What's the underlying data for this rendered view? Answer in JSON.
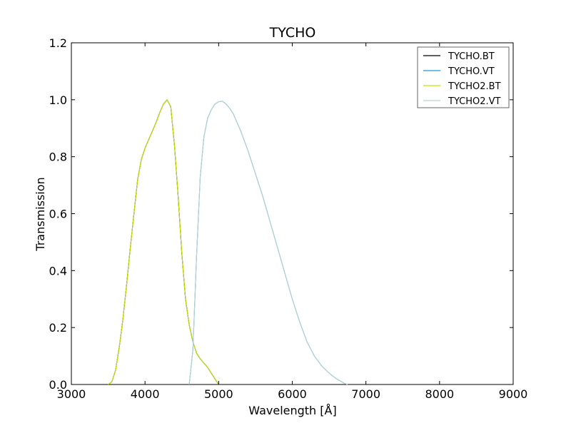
{
  "chart_data": {
    "type": "line",
    "title": "TYCHO",
    "xlabel": "Wavelength [Å]",
    "ylabel": "Transmission",
    "xlim": [
      3000,
      9000
    ],
    "ylim": [
      0,
      1.2
    ],
    "x_ticks": [
      3000,
      4000,
      5000,
      6000,
      7000,
      8000,
      9000
    ],
    "x_tick_labels": [
      "3000",
      "4000",
      "5000",
      "6000",
      "7000",
      "8000",
      "9000"
    ],
    "y_ticks": [
      0.0,
      0.2,
      0.4,
      0.6,
      0.8,
      1.0,
      1.2
    ],
    "y_tick_labels": [
      "0.0",
      "0.2",
      "0.4",
      "0.6",
      "0.8",
      "1.0",
      "1.2"
    ],
    "grid": false,
    "legend_position": "top-right",
    "series": [
      {
        "name": "TYCHO.BT",
        "color": "#000000",
        "x": [
          3500,
          3550,
          3600,
          3650,
          3700,
          3750,
          3800,
          3850,
          3900,
          3950,
          4000,
          4050,
          4100,
          4150,
          4200,
          4250,
          4300,
          4350,
          4400,
          4450,
          4500,
          4550,
          4600,
          4650,
          4700,
          4750,
          4800,
          4850,
          4900,
          4950,
          5000
        ],
        "y": [
          0.0,
          0.01,
          0.05,
          0.13,
          0.23,
          0.35,
          0.48,
          0.6,
          0.72,
          0.79,
          0.83,
          0.86,
          0.89,
          0.92,
          0.955,
          0.985,
          1.0,
          0.975,
          0.84,
          0.66,
          0.46,
          0.3,
          0.21,
          0.15,
          0.11,
          0.09,
          0.075,
          0.06,
          0.04,
          0.02,
          0.0
        ]
      },
      {
        "name": "TYCHO.VT",
        "color": "#1f9bd1",
        "x": [
          4600,
          4650,
          4700,
          4750,
          4800,
          4850,
          4900,
          4950,
          5000,
          5050,
          5100,
          5150,
          5200,
          5300,
          5400,
          5500,
          5600,
          5700,
          5800,
          5900,
          6000,
          6100,
          6200,
          6300,
          6400,
          6500,
          6600,
          6700,
          6750
        ],
        "y": [
          0.0,
          0.12,
          0.45,
          0.73,
          0.87,
          0.935,
          0.965,
          0.985,
          0.993,
          0.995,
          0.985,
          0.97,
          0.95,
          0.89,
          0.82,
          0.74,
          0.66,
          0.57,
          0.48,
          0.39,
          0.3,
          0.22,
          0.15,
          0.1,
          0.065,
          0.04,
          0.02,
          0.005,
          0.0
        ]
      },
      {
        "name": "TYCHO2.BT",
        "color": "#c7e400",
        "x": [
          3500,
          3550,
          3600,
          3650,
          3700,
          3750,
          3800,
          3850,
          3900,
          3950,
          4000,
          4050,
          4100,
          4150,
          4200,
          4250,
          4300,
          4350,
          4400,
          4450,
          4500,
          4550,
          4600,
          4650,
          4700,
          4750,
          4800,
          4850,
          4900,
          4950,
          5000
        ],
        "y": [
          0.0,
          0.01,
          0.05,
          0.13,
          0.23,
          0.35,
          0.48,
          0.6,
          0.72,
          0.79,
          0.83,
          0.86,
          0.89,
          0.92,
          0.955,
          0.985,
          1.0,
          0.975,
          0.84,
          0.66,
          0.46,
          0.3,
          0.21,
          0.15,
          0.11,
          0.09,
          0.075,
          0.06,
          0.04,
          0.02,
          0.0
        ]
      },
      {
        "name": "TYCHO2.VT",
        "color": "#b9d2d2",
        "x": [
          4600,
          4650,
          4700,
          4750,
          4800,
          4850,
          4900,
          4950,
          5000,
          5050,
          5100,
          5150,
          5200,
          5300,
          5400,
          5500,
          5600,
          5700,
          5800,
          5900,
          6000,
          6100,
          6200,
          6300,
          6400,
          6500,
          6600,
          6700,
          6750
        ],
        "y": [
          0.0,
          0.12,
          0.45,
          0.73,
          0.87,
          0.935,
          0.965,
          0.985,
          0.993,
          0.995,
          0.985,
          0.97,
          0.95,
          0.89,
          0.82,
          0.74,
          0.66,
          0.57,
          0.48,
          0.39,
          0.3,
          0.22,
          0.15,
          0.1,
          0.065,
          0.04,
          0.02,
          0.005,
          0.0
        ]
      }
    ]
  }
}
